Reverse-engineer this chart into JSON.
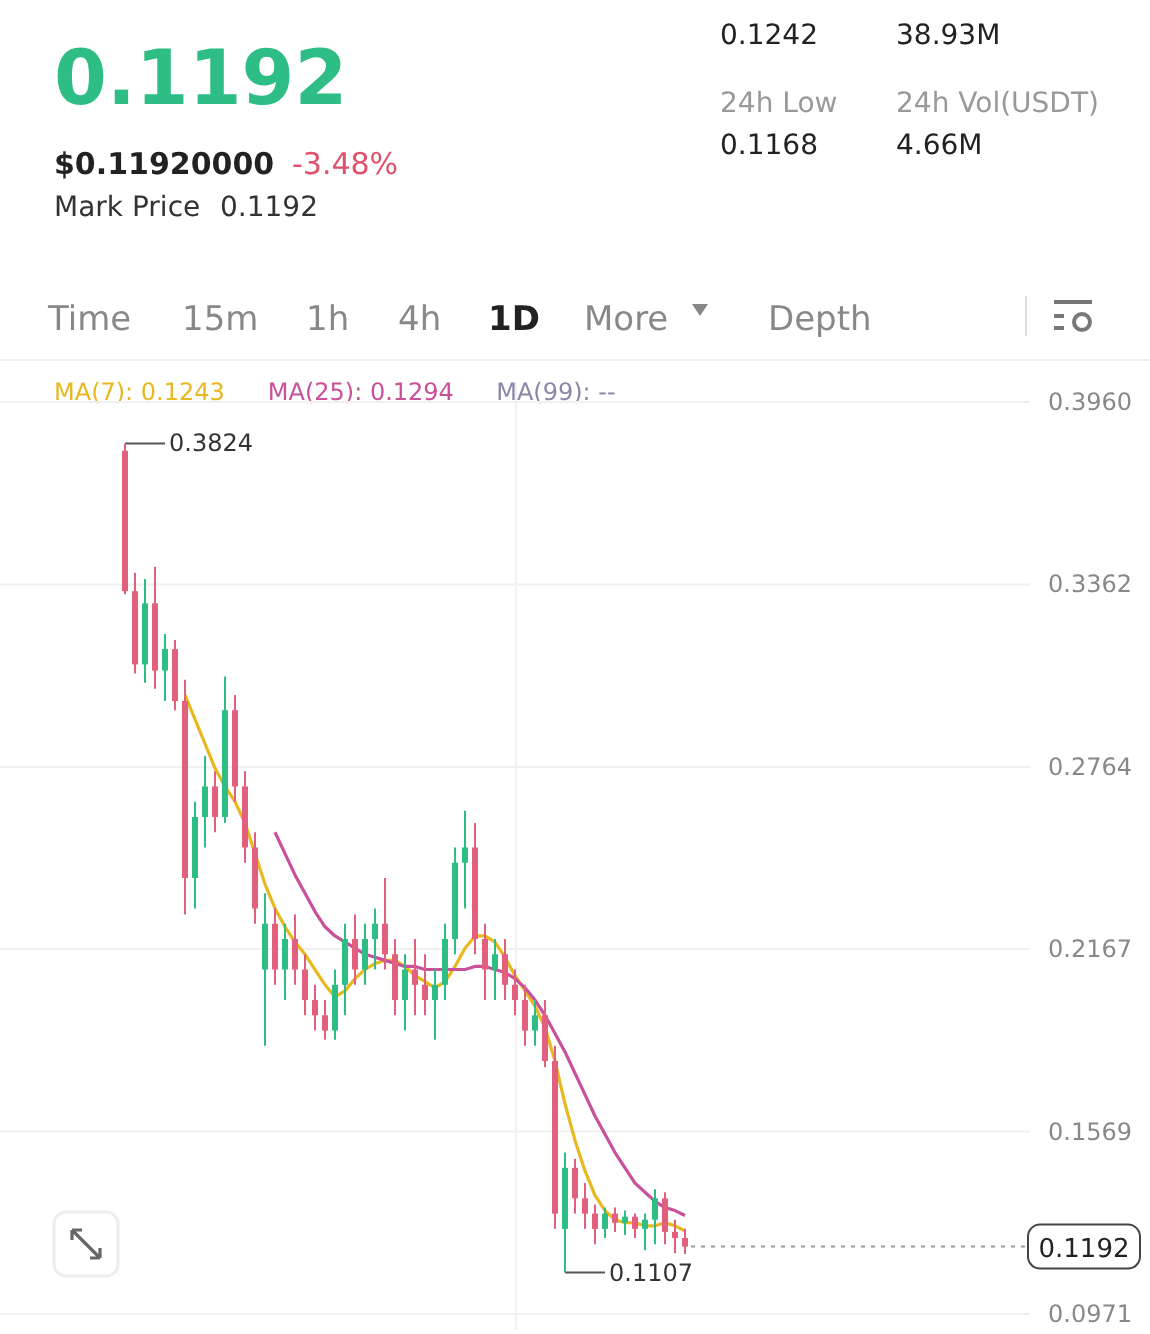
{
  "chart_data": {
    "type": "candlestick",
    "title": "0.1192",
    "subtitle": "$0.11920000",
    "annotations": [
      "-3.48%",
      "Mark Price",
      "0.1192",
      "0.1242",
      "38.93M",
      "24h Low",
      "0.1168",
      "24h Vol(USDT)",
      "4.66M",
      "Time",
      "15m",
      "1h",
      "4h",
      "1D",
      "More",
      "Depth",
      "0.3824",
      "0.1107"
    ],
    "categories": [
      null,
      null,
      null,
      null,
      null,
      null,
      null,
      null,
      null,
      null,
      null,
      null,
      null,
      null,
      null,
      null,
      null,
      null,
      null,
      null,
      null,
      null,
      null,
      null,
      null,
      null,
      null,
      null,
      null,
      null,
      null,
      null,
      null,
      null,
      null,
      null,
      null,
      null,
      null,
      null,
      null,
      null,
      null,
      null,
      null,
      null,
      null,
      null,
      null,
      null,
      null,
      null,
      null,
      null,
      null,
      null,
      null,
      null,
      null,
      null,
      null,
      null,
      null,
      null,
      null,
      null,
      null,
      null,
      null,
      null,
      null,
      null,
      null,
      null,
      null,
      null,
      null,
      null,
      null,
      null,
      null,
      null,
      null,
      null,
      null,
      null,
      null,
      null,
      null,
      null,
      null,
      null,
      null,
      null,
      null,
      null,
      null,
      null,
      null,
      null,
      null,
      null,
      null
    ],
    "ohlc": [
      null,
      null,
      null,
      null,
      null,
      null,
      null,
      null,
      null,
      null,
      null,
      null,
      [
        0.38,
        0.3824,
        0.333,
        0.334
      ],
      [
        0.334,
        0.34,
        0.307,
        0.31
      ],
      [
        0.31,
        0.338,
        0.304,
        0.33
      ],
      [
        0.33,
        0.342,
        0.302,
        0.308
      ],
      [
        0.308,
        0.32,
        0.298,
        0.315
      ],
      [
        0.315,
        0.318,
        0.295,
        0.298
      ],
      [
        0.298,
        0.305,
        0.228,
        0.24
      ],
      [
        0.24,
        0.265,
        0.23,
        0.26
      ],
      [
        0.26,
        0.28,
        0.25,
        0.27
      ],
      [
        0.27,
        0.275,
        0.255,
        0.26
      ],
      [
        0.26,
        0.306,
        0.258,
        0.295
      ],
      [
        0.295,
        0.3,
        0.265,
        0.27
      ],
      [
        0.27,
        0.275,
        0.245,
        0.25
      ],
      [
        0.25,
        0.255,
        0.225,
        0.23
      ],
      [
        0.21,
        0.235,
        0.185,
        0.225
      ],
      [
        0.225,
        0.23,
        0.205,
        0.21
      ],
      [
        0.21,
        0.225,
        0.2,
        0.22
      ],
      [
        0.22,
        0.228,
        0.205,
        0.21
      ],
      [
        0.21,
        0.215,
        0.195,
        0.2
      ],
      [
        0.2,
        0.205,
        0.19,
        0.195
      ],
      [
        0.195,
        0.2,
        0.187,
        0.19
      ],
      [
        0.19,
        0.21,
        0.187,
        0.205
      ],
      [
        0.205,
        0.225,
        0.195,
        0.22
      ],
      [
        0.22,
        0.228,
        0.205,
        0.21
      ],
      [
        0.21,
        0.225,
        0.205,
        0.22
      ],
      [
        0.22,
        0.23,
        0.21,
        0.225
      ],
      [
        0.225,
        0.24,
        0.21,
        0.215
      ],
      [
        0.215,
        0.22,
        0.195,
        0.2
      ],
      [
        0.2,
        0.215,
        0.19,
        0.21
      ],
      [
        0.21,
        0.22,
        0.195,
        0.205
      ],
      [
        0.205,
        0.215,
        0.195,
        0.2
      ],
      [
        0.2,
        0.21,
        0.187,
        0.205
      ],
      [
        0.205,
        0.225,
        0.2,
        0.22
      ],
      [
        0.22,
        0.25,
        0.215,
        0.245
      ],
      [
        0.245,
        0.262,
        0.23,
        0.25
      ],
      [
        0.25,
        0.258,
        0.215,
        0.22
      ],
      [
        0.22,
        0.225,
        0.2,
        0.21
      ],
      [
        0.21,
        0.22,
        0.2,
        0.215
      ],
      [
        0.215,
        0.22,
        0.2,
        0.205
      ],
      [
        0.205,
        0.21,
        0.195,
        0.2
      ],
      [
        0.2,
        0.205,
        0.185,
        0.19
      ],
      [
        0.19,
        0.2,
        0.185,
        0.195
      ],
      [
        0.195,
        0.2,
        0.178,
        0.18
      ],
      [
        0.18,
        0.185,
        0.125,
        0.13
      ],
      [
        0.125,
        0.15,
        0.1107,
        0.145
      ],
      [
        0.145,
        0.148,
        0.13,
        0.135
      ],
      [
        0.135,
        0.14,
        0.125,
        0.13
      ],
      [
        0.13,
        0.133,
        0.12,
        0.125
      ],
      [
        0.125,
        0.132,
        0.122,
        0.13
      ],
      [
        0.13,
        0.132,
        0.124,
        0.127
      ],
      [
        0.127,
        0.131,
        0.123,
        0.129
      ],
      [
        0.129,
        0.13,
        0.122,
        0.125
      ],
      [
        0.125,
        0.13,
        0.118,
        0.128
      ],
      [
        0.128,
        0.138,
        0.12,
        0.135
      ],
      [
        0.135,
        0.137,
        0.12,
        0.124
      ],
      [
        0.124,
        0.128,
        0.117,
        0.122
      ],
      [
        0.122,
        0.125,
        0.1168,
        0.1192
      ],
      null,
      null,
      null,
      null,
      null,
      null,
      null,
      null,
      null,
      null,
      null,
      null,
      null,
      null,
      null,
      null,
      null,
      null,
      null,
      null,
      null,
      null,
      null,
      null,
      null,
      null,
      null,
      null,
      null,
      null,
      null,
      null,
      null,
      null
    ],
    "colors": [
      null,
      null,
      null,
      null,
      null,
      null,
      null,
      null,
      null,
      null,
      null,
      null,
      "#e0607e",
      "#e0607e",
      "#2ebd85",
      "#e0607e",
      "#2ebd85",
      "#e0607e",
      "#e0607e",
      "#2ebd85",
      "#2ebd85",
      "#e0607e",
      "#2ebd85",
      "#e0607e",
      "#e0607e",
      "#e0607e",
      "#2ebd85",
      "#e0607e",
      "#2ebd85",
      "#e0607e",
      "#e0607e",
      "#e0607e",
      "#e0607e",
      "#2ebd85",
      "#2ebd85",
      "#e0607e",
      "#2ebd85",
      "#2ebd85",
      "#e0607e",
      "#e0607e",
      "#2ebd85",
      "#e0607e",
      "#e0607e",
      "#2ebd85",
      "#2ebd85",
      "#2ebd85",
      "#2ebd85",
      "#e0607e",
      "#e0607e",
      "#2ebd85",
      "#e0607e",
      "#e0607e",
      "#e0607e",
      "#2ebd85",
      "#e0607e",
      "#e0607e",
      "#2ebd85",
      "#e0607e",
      "#e0607e",
      "#e0607e",
      "#2ebd85",
      "#e0607e",
      "#2ebd85",
      "#e0607e",
      "#2ebd85",
      "#2ebd85",
      "#e0607e",
      "#e0607e",
      "#e0607e",
      null,
      null,
      null,
      null,
      null,
      null,
      null,
      null,
      null,
      null,
      null,
      null,
      null,
      null,
      null,
      null,
      null,
      null,
      null,
      null,
      null,
      null,
      null,
      null,
      null,
      null,
      null,
      null,
      null,
      null,
      null,
      null,
      null,
      null
    ],
    "series": [
      {
        "name": "MA(7): 0.1243",
        "type": "line",
        "color": "#e8b820",
        "values": [
          null,
          null,
          null,
          null,
          null,
          null,
          null,
          null,
          null,
          null,
          null,
          null,
          null,
          null,
          null,
          null,
          null,
          null,
          0.3,
          0.292,
          0.284,
          0.276,
          0.27,
          0.265,
          0.258,
          0.248,
          0.238,
          0.23,
          0.224,
          0.219,
          0.215,
          0.21,
          0.205,
          0.201,
          0.203,
          0.207,
          0.21,
          0.212,
          0.213,
          0.213,
          0.211,
          0.208,
          0.206,
          0.204,
          0.206,
          0.211,
          0.217,
          0.221,
          0.221,
          0.219,
          0.214,
          0.208,
          0.203,
          0.198,
          0.191,
          0.18,
          0.166,
          0.154,
          0.144,
          0.136,
          0.131,
          0.128,
          0.127,
          0.127,
          0.126,
          0.126,
          0.127,
          0.126,
          0.1243,
          null,
          null,
          null,
          null,
          null,
          null,
          null,
          null,
          null,
          null,
          null,
          null,
          null,
          null,
          null,
          null,
          null,
          null,
          null,
          null,
          null,
          null,
          null,
          null,
          null,
          null,
          null,
          null,
          null,
          null,
          null,
          null,
          null,
          null
        ]
      },
      {
        "name": "MA(25): 0.1294",
        "type": "line",
        "color": "#c9509a",
        "values": [
          null,
          null,
          null,
          null,
          null,
          null,
          null,
          null,
          null,
          null,
          null,
          null,
          null,
          null,
          null,
          null,
          null,
          null,
          null,
          null,
          null,
          null,
          null,
          null,
          null,
          null,
          null,
          0.255,
          0.248,
          0.241,
          0.235,
          0.229,
          0.224,
          0.221,
          0.219,
          0.217,
          0.215,
          0.214,
          0.213,
          0.212,
          0.211,
          0.211,
          0.21,
          0.21,
          0.21,
          0.21,
          0.21,
          0.211,
          0.211,
          0.21,
          0.209,
          0.207,
          0.204,
          0.2,
          0.195,
          0.189,
          0.183,
          0.176,
          0.169,
          0.162,
          0.156,
          0.15,
          0.145,
          0.14,
          0.137,
          0.134,
          0.132,
          0.131,
          0.1294,
          null,
          null,
          null,
          null,
          null,
          null,
          null,
          null,
          null,
          null,
          null,
          null,
          null,
          null,
          null,
          null,
          null,
          null,
          null,
          null,
          null,
          null,
          null,
          null,
          null,
          null,
          null,
          null,
          null,
          null,
          null,
          null,
          null,
          null
        ]
      },
      {
        "name": "MA(99): --",
        "type": "line",
        "color": "#8d86a8",
        "values": [
          null,
          null,
          null,
          null,
          null,
          null,
          null,
          null,
          null,
          null,
          null,
          null,
          null,
          null,
          null,
          null,
          null,
          null,
          null,
          null,
          null,
          null,
          null,
          null,
          null,
          null,
          null,
          null,
          null,
          null,
          null,
          null,
          null,
          null,
          null,
          null,
          null,
          null,
          null,
          null,
          null,
          null,
          null,
          null,
          null,
          null,
          null,
          null,
          null,
          null,
          null,
          null,
          null,
          null,
          null,
          null,
          null,
          null,
          null,
          null,
          null,
          null,
          null,
          null,
          null,
          null,
          null,
          null,
          null,
          null,
          null,
          null,
          null,
          null,
          null,
          null,
          null,
          null,
          null,
          null,
          null,
          null,
          null,
          null,
          null,
          null,
          null,
          null,
          null,
          null,
          null,
          null,
          null,
          null,
          null,
          null,
          null,
          null,
          null,
          null,
          null,
          null,
          null
        ]
      }
    ],
    "ylim": [
      0.0971,
      0.396
    ],
    "yticks": [
      {
        "value": 0.396,
        "label": "0.3960"
      },
      0.3362,
      0.2764,
      0.2167,
      0.1569,
      0.0971
    ],
    "ref_lines": [
      {
        "axis": "y",
        "value": 0.1192,
        "label": "0.1192",
        "line_style": "dotted",
        "color": "#9a9a9a"
      }
    ],
    "grid": "y",
    "legend": "top"
  }
}
